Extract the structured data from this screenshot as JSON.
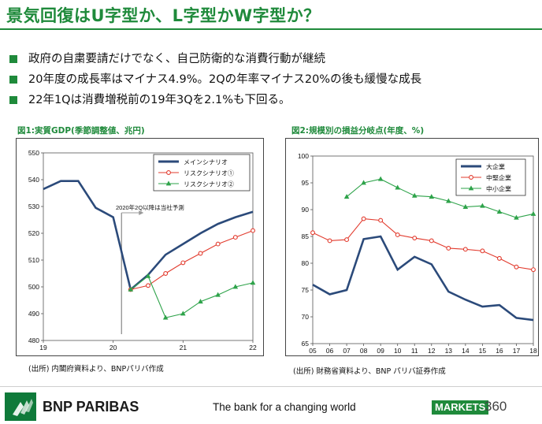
{
  "title": "景気回復はU字型か、L字型かW字型か？",
  "bullets": [
    "政府の自粛要請だけでなく、自己防衛的な消費行動が継続",
    "20年度の成長率はマイナス4.9%。2Qの年率マイナス20%の後も緩慢な成長",
    "22年1Qは消費増税前の19年3Qを2.1%も下回る。"
  ],
  "figures": {
    "left": {
      "title": "図1:実質GDP(季節調整値、兆円)",
      "source": "(出所) 内閣府資料より、BNPパリバ作成"
    },
    "right": {
      "title": "図2:規模別の損益分岐点(年度、%)",
      "source": "(出所) 財務省資料より、BNP パリバ証券作成"
    }
  },
  "chart_data": [
    {
      "type": "line",
      "title": "図1:実質GDP(季節調整値、兆円)",
      "ylim": [
        480,
        550
      ],
      "yticks": [
        480,
        490,
        500,
        510,
        520,
        530,
        540,
        550
      ],
      "xticks": [
        "19",
        "20",
        "21",
        "22"
      ],
      "annotation": "2020年2Q以降は当社予測",
      "legend_position": "top-right",
      "series": [
        {
          "name": "メインシナリオ",
          "color": "#2b4a7a",
          "marker": "none",
          "x": [
            0,
            0.25,
            0.5,
            0.75,
            1.0,
            1.25,
            1.5,
            1.75,
            2.0,
            2.25,
            2.5,
            2.75,
            3.0
          ],
          "values": [
            536.5,
            539.5,
            539.5,
            529.5,
            526.0,
            499.0,
            504.5,
            512.0,
            516.0,
            520.0,
            523.5,
            526.0,
            528.0
          ]
        },
        {
          "name": "リスクシナリオ①",
          "color": "#e23b2e",
          "marker": "circle",
          "x": [
            1.25,
            1.5,
            1.75,
            2.0,
            2.25,
            2.5,
            2.75,
            3.0
          ],
          "values": [
            499.0,
            500.5,
            505.0,
            509.0,
            512.5,
            516.0,
            518.5,
            521.0
          ]
        },
        {
          "name": "リスクシナリオ②",
          "color": "#2ea34a",
          "marker": "triangle",
          "x": [
            1.25,
            1.5,
            1.75,
            2.0,
            2.25,
            2.5,
            2.75,
            3.0
          ],
          "values": [
            499.0,
            504.0,
            488.5,
            490.0,
            494.5,
            497.0,
            500.0,
            501.5
          ]
        }
      ]
    },
    {
      "type": "line",
      "title": "図2:規模別の損益分岐点(年度、%)",
      "ylim": [
        65,
        100
      ],
      "yticks": [
        65,
        70,
        75,
        80,
        85,
        90,
        95,
        100
      ],
      "categories": [
        "05",
        "06",
        "07",
        "08",
        "09",
        "10",
        "11",
        "12",
        "13",
        "14",
        "15",
        "16",
        "17",
        "18"
      ],
      "legend_position": "top-right",
      "series": [
        {
          "name": "大企業",
          "color": "#2b4a7a",
          "marker": "none",
          "values": [
            76.0,
            74.2,
            75.0,
            84.5,
            85.0,
            78.8,
            81.2,
            79.8,
            74.7,
            73.2,
            71.9,
            72.2,
            69.8,
            69.4
          ]
        },
        {
          "name": "中堅企業",
          "color": "#e23b2e",
          "marker": "circle",
          "values": [
            85.7,
            84.2,
            84.4,
            88.3,
            88.0,
            85.3,
            84.7,
            84.2,
            82.8,
            82.6,
            82.3,
            80.9,
            79.3,
            78.8
          ]
        },
        {
          "name": "中小企業",
          "color": "#2ea34a",
          "marker": "triangle",
          "values": [
            null,
            null,
            92.4,
            95.0,
            95.7,
            94.1,
            92.6,
            92.4,
            91.6,
            90.5,
            90.7,
            89.6,
            88.5,
            89.2
          ]
        }
      ]
    }
  ],
  "footer": {
    "brand": "BNP PARIBAS",
    "tagline": "The bank for a changing world",
    "markets_label": "MARKETS",
    "markets_number": "360"
  }
}
